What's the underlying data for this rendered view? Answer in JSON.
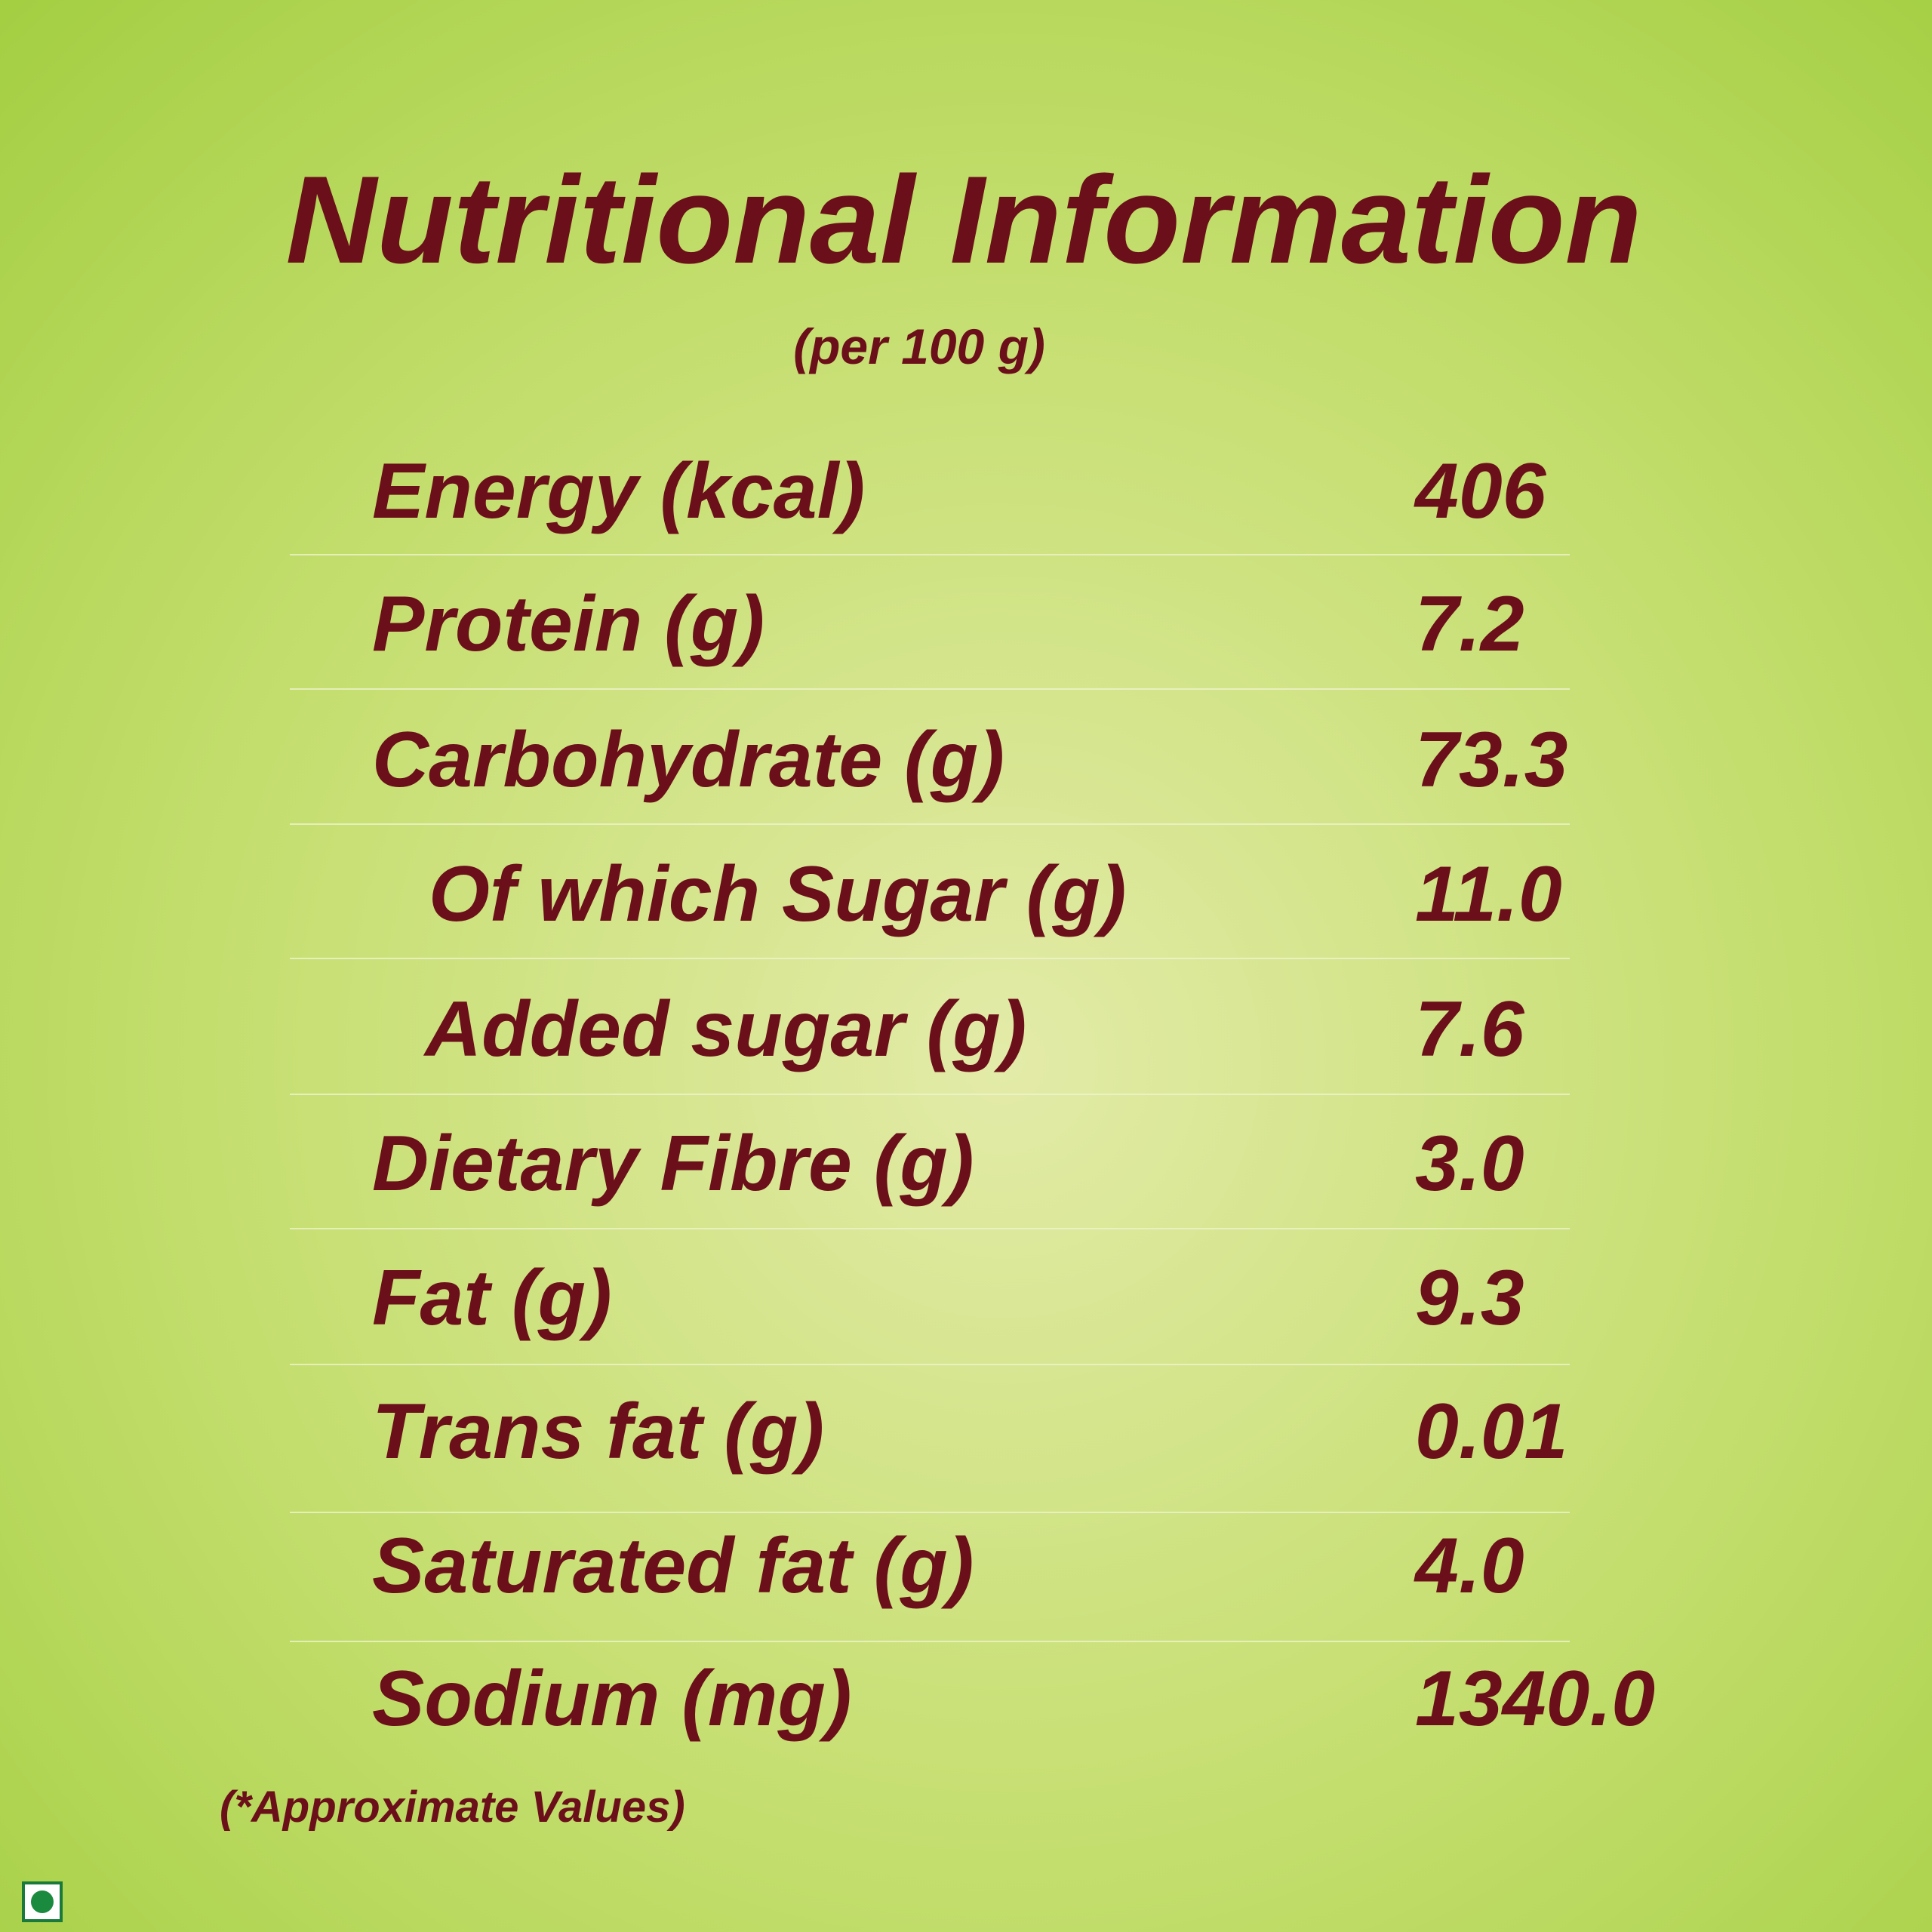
{
  "header": {
    "title": "Nutritional Information",
    "subtitle": "(per 100 g)"
  },
  "table": {
    "rows": [
      [
        "Energy (kcal)",
        "406"
      ],
      [
        "Protein (g)",
        "7.2"
      ],
      [
        "Carbohydrate (g)",
        "73.3"
      ],
      [
        "Of which Sugar (g)",
        "11.0"
      ],
      [
        "Added sugar (g)",
        "7.6"
      ],
      [
        "Dietary Fibre (g)",
        "3.0"
      ],
      [
        "Fat (g)",
        "9.3"
      ],
      [
        "Trans fat (g)",
        "0.01"
      ],
      [
        "Saturated fat (g)",
        "4.0"
      ],
      [
        "Sodium (mg)",
        "1340.0"
      ]
    ]
  },
  "footnote": "(*Approximate Values)"
}
